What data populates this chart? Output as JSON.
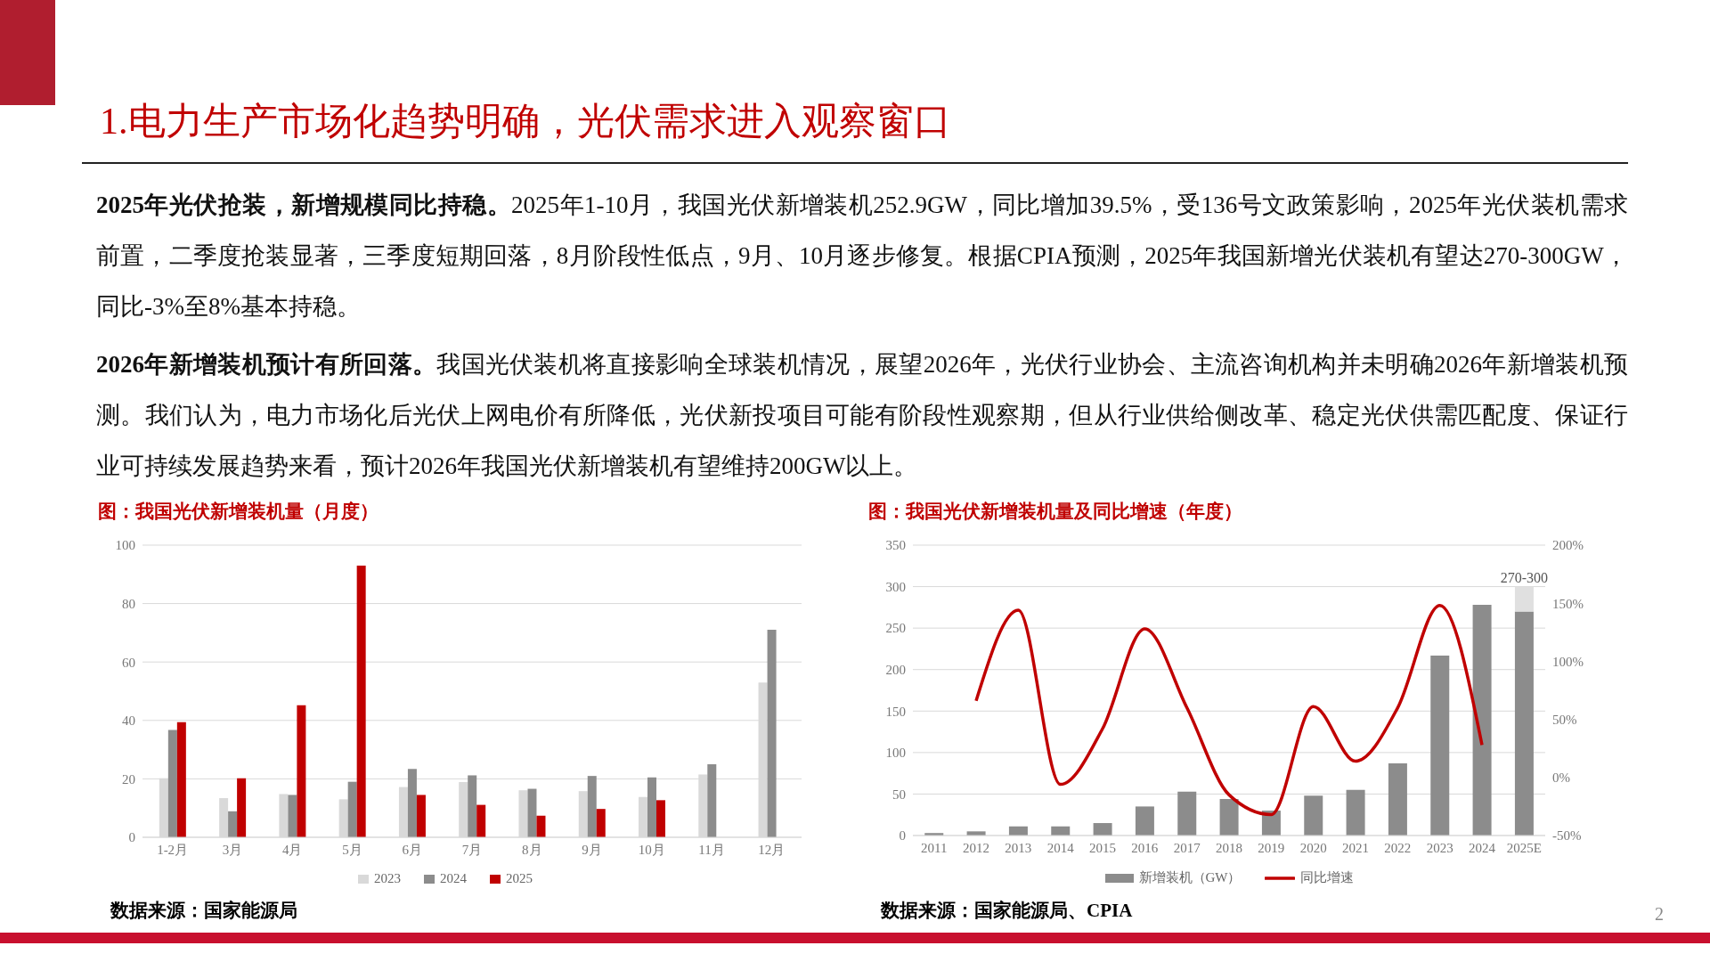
{
  "chart_data": [
    {
      "type": "other",
      "title": "1.电力生产市场化趋势明确，光伏需求进入观察窗口",
      "annotations": [
        "2025年光伏抢装，新增规模同比持稳。",
        "2025年1-10月，我国光伏新增装机252.9GW，同比增加39.5%，受136号文政策影响，2025年光伏装机需求前置，二季度抢装显著，三季度短期回落，8月阶段性低点，9月、10月逐步修复。根据CPIA预测，2025年我国新增光伏装机有望达270-300GW，同比-3%至8%基本持稳。",
        "2026年新增装机预计有所回落。",
        "我国光伏装机将直接影响全球装机情况，展望2026年，光伏行业协会、主流咨询机构并未明确2026年新增装机预测。我们认为，电力市场化后光伏上网电价有所降低，光伏新投项目可能有阶段性观察期，但从行业供给侧改革、稳定光伏供需匹配度、保证行业可持续发展趋势来看，预计2026年我国光伏新增装机有望维持200GW以上。",
        "2"
      ]
    },
    {
      "type": "bar",
      "title": "图：我国光伏新增装机量（月度）",
      "categories": [
        "1-2月",
        "3月",
        "4月",
        "5月",
        "6月",
        "7月",
        "8月",
        "9月",
        "10月",
        "11月",
        "12月"
      ],
      "series": [
        {
          "name": "2023",
          "color": "#d9d9d9",
          "values": [
            20.2,
            13.4,
            14.8,
            13.0,
            17.2,
            18.9,
            16.1,
            15.8,
            13.8,
            21.5,
            53.0
          ]
        },
        {
          "name": "2024",
          "color": "#8c8c8c",
          "values": [
            36.7,
            8.9,
            14.5,
            19.0,
            23.4,
            21.2,
            16.6,
            21.0,
            20.5,
            25.0,
            71.0
          ]
        },
        {
          "name": "2025",
          "color": "#c00000",
          "values": [
            39.4,
            20.2,
            45.2,
            93.0,
            14.5,
            11.1,
            7.4,
            9.7,
            12.7,
            null,
            null
          ]
        }
      ],
      "ylim": [
        0,
        100
      ],
      "yticks": [
        0,
        20,
        40,
        60,
        80,
        100
      ],
      "grid": "y",
      "legend": "bottom",
      "annotations": [
        "数据来源：国家能源局"
      ]
    },
    {
      "type": "bar",
      "title": "图：我国光伏新增装机量及同比增速（年度）",
      "categories": [
        "2011",
        "2012",
        "2013",
        "2014",
        "2015",
        "2016",
        "2017",
        "2018",
        "2019",
        "2020",
        "2021",
        "2022",
        "2023",
        "2024",
        "2025E"
      ],
      "stacked": true,
      "series": [
        {
          "name": "新增装机（GW）",
          "color": "#8c8c8c",
          "values": [
            3,
            5,
            11,
            11,
            15,
            35,
            53,
            44,
            30,
            48,
            55,
            87,
            217,
            278,
            270
          ]
        },
        {
          "color": "#e0e0e0",
          "values": [
            null,
            null,
            null,
            null,
            null,
            null,
            null,
            null,
            null,
            null,
            null,
            null,
            null,
            null,
            30
          ]
        },
        {
          "name": "同比增速",
          "type": "line",
          "axis": "y2",
          "color": "#c00000",
          "values": [
            null,
            66,
            144,
            -6,
            42,
            128,
            60,
            -15,
            -32,
            61,
            14,
            60,
            148,
            28,
            null
          ]
        }
      ],
      "ylim": [
        0,
        350
      ],
      "yticks": [
        0,
        50,
        100,
        150,
        200,
        250,
        300,
        350
      ],
      "y2lim": [
        -50,
        200
      ],
      "y2ticks": [
        {
          "value": -50,
          "label": "-50%"
        },
        {
          "value": 0,
          "label": "0%"
        },
        {
          "value": 50,
          "label": "50%"
        },
        {
          "value": 100,
          "label": "100%"
        },
        {
          "value": 150,
          "label": "150%"
        },
        {
          "value": 200,
          "label": "200%"
        }
      ],
      "grid": "y",
      "legend": "bottom",
      "marker": "none",
      "line_style": "solid",
      "annotations": [
        {
          "text": "270-300",
          "x": "2025E",
          "y": 300
        },
        "数据来源：国家能源局、CPIA"
      ]
    }
  ]
}
